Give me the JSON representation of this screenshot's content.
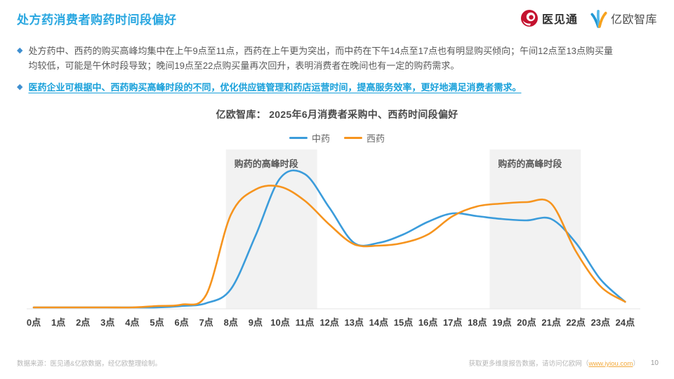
{
  "header": {
    "title": "处方药消费者购药时间段偏好",
    "logo_yijiantong": "医见通",
    "logo_yiou": "亿欧智库"
  },
  "bullets": [
    {
      "text": "处方药中、西药的购买高峰均集中在上午9点至11点，西药在上午更为突出，而中药在下午14点至17点也有明显购买倾向；午间12点至13点购买量均较低，可能是午休时段导致；晚间19点至22点购买量再次回升，表明消费者在晚间也有一定的购药需求。"
    },
    {
      "text": "医药企业可根据中、西药购买高峰时段的不同，优化供应链管理和药店运营时间，提高服务效率，更好地满足消费者需求。"
    }
  ],
  "chart_data": {
    "type": "line",
    "title": "亿欧智库： 2025年6月消费者采购中、西药时间段偏好",
    "categories": [
      "0点",
      "1点",
      "2点",
      "3点",
      "4点",
      "5点",
      "6点",
      "7点",
      "8点",
      "9点",
      "10点",
      "11点",
      "12点",
      "13点",
      "14点",
      "15点",
      "16点",
      "17点",
      "18点",
      "19点",
      "20点",
      "21点",
      "22点",
      "23点",
      "24点"
    ],
    "series": [
      {
        "name": "中药",
        "color": "#3B9CDB",
        "values": [
          1,
          1,
          1,
          1,
          1,
          1,
          2,
          4,
          14,
          52,
          93,
          96,
          72,
          47,
          47,
          53,
          62,
          68,
          66,
          64,
          63,
          64,
          47,
          21,
          5
        ]
      },
      {
        "name": "西药",
        "color": "#F6941E",
        "values": [
          1,
          1,
          1,
          1,
          1,
          2,
          3,
          10,
          67,
          85,
          87,
          77,
          60,
          46,
          45,
          47,
          53,
          66,
          73,
          75,
          76,
          75,
          41,
          16,
          5
        ]
      }
    ],
    "highlight_bands": [
      {
        "label": "购药的高峰时段",
        "x_start": 7.8,
        "x_end": 11.5
      },
      {
        "label": "购药的高峰时段",
        "x_start": 18.5,
        "x_end": 22.2
      }
    ],
    "ylim": [
      0,
      100
    ],
    "grid": false,
    "legend_position": "top",
    "band_color": "#F2F2F2",
    "band_label_color": "#595959",
    "axis_line_color": "#E6E6E6",
    "tick_label_color": "#3F3F3F"
  },
  "footer": {
    "source": "数据来源：医见通&亿欧数据，经亿欧整理绘制。",
    "cta_prefix": "获取更多维度报告数据，请访问亿欧网（",
    "cta_link": "www.iyiou.com",
    "cta_suffix": "）",
    "page_number": "10"
  },
  "colors": {
    "title_blue": "#2AA7E0",
    "bullet_emphasis_blue": "#18A0DA",
    "diamond_blue": "#3F8FD0",
    "series_zhongyao": "#3B9CDB",
    "series_xiyao": "#F6941E",
    "link_orange": "#F2A93B"
  }
}
